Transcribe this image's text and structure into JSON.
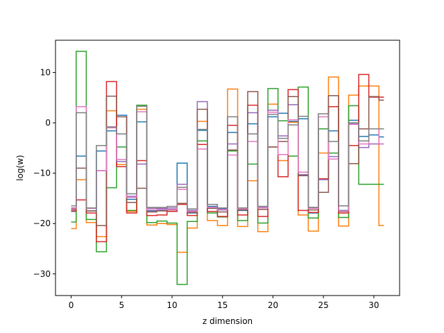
{
  "chart_data": {
    "type": "line",
    "drawstyle": "steps-mid",
    "xlabel": "z dimension",
    "ylabel": "log(w)",
    "xlim": [
      -1.55,
      32.55
    ],
    "ylim": [
      -34.3,
      16.4
    ],
    "xticks": [
      0,
      5,
      10,
      15,
      20,
      25,
      30
    ],
    "yticks": [
      -30,
      -20,
      -10,
      0,
      10
    ],
    "x": [
      0,
      1,
      2,
      3,
      4,
      5,
      6,
      7,
      8,
      9,
      10,
      11,
      12,
      13,
      14,
      15,
      16,
      17,
      18,
      19,
      20,
      21,
      22,
      23,
      24,
      25,
      26,
      27,
      28,
      29,
      30,
      31
    ],
    "series": [
      {
        "color": "#1f77b4",
        "values": [
          -17.6,
          -6.6,
          -17.5,
          -5.6,
          -1.6,
          1.5,
          -15.2,
          0.2,
          -17.5,
          -17.4,
          -17.2,
          -8.0,
          -17.9,
          -1.5,
          -16.6,
          -17.1,
          -1.9,
          -17.4,
          -0.2,
          -16.9,
          1.2,
          1.9,
          0.3,
          0.8,
          -17.9,
          -1.2,
          -1.6,
          -17.4,
          0.5,
          -2.7,
          -2.4,
          -2.8
        ]
      },
      {
        "color": "#ff7f0e",
        "values": [
          -21.0,
          -11.3,
          -19.8,
          -22.6,
          2.4,
          -8.3,
          -17.6,
          2.7,
          -20.3,
          -20.0,
          -20.2,
          -25.7,
          -20.9,
          0.3,
          -19.4,
          -20.4,
          6.7,
          -20.6,
          -11.5,
          -21.6,
          3.7,
          -7.5,
          0.1,
          -18.3,
          -21.5,
          -6.0,
          9.1,
          -20.5,
          5.5,
          7.3,
          7.3,
          -20.4
        ]
      },
      {
        "color": "#2ca02c",
        "values": [
          -19.7,
          14.2,
          -19.2,
          -25.6,
          -12.9,
          -4.8,
          -17.4,
          3.5,
          -19.8,
          -19.5,
          -19.9,
          -32.1,
          -19.6,
          -3.6,
          -17.9,
          -18.7,
          -5.6,
          -19.4,
          -8.2,
          -19.9,
          6.8,
          0.4,
          -6.6,
          7.1,
          -18.9,
          -1.2,
          -6.0,
          -18.8,
          3.4,
          -12.2,
          -12.2,
          -12.2
        ]
      },
      {
        "color": "#d62728",
        "values": [
          -17.5,
          -15.3,
          -17.9,
          -23.6,
          8.2,
          -8.7,
          -17.9,
          -7.5,
          -18.4,
          -18.3,
          -17.6,
          -16.2,
          -18.4,
          -4.3,
          -17.6,
          -18.6,
          -0.5,
          -18.3,
          3.5,
          -18.6,
          -4.8,
          -10.7,
          6.6,
          -17.4,
          -17.8,
          -11.1,
          3.2,
          -17.9,
          -4.5,
          9.6,
          5.1,
          5.1
        ]
      },
      {
        "color": "#9467bd",
        "values": [
          -16.9,
          3.2,
          -16.9,
          -9.5,
          -0.9,
          -7.7,
          -14.6,
          -8.2,
          -17.0,
          -17.0,
          -16.9,
          -12.2,
          -17.4,
          4.2,
          -16.8,
          -17.3,
          -4.2,
          -17.0,
          2.0,
          -16.8,
          2.5,
          -2.6,
          3.6,
          -10.3,
          -16.8,
          -11.3,
          -6.7,
          -16.5,
          -0.2,
          -4.9,
          -4.2,
          -4.2
        ]
      },
      {
        "color": "#8c564b",
        "values": [
          -17.2,
          -9.0,
          -17.5,
          -20.4,
          5.3,
          1.2,
          -15.8,
          -13.0,
          -17.7,
          -17.5,
          -17.3,
          -16.0,
          -17.8,
          2.7,
          -17.0,
          -17.7,
          -5.4,
          -17.3,
          6.2,
          -17.2,
          -4.8,
          -3.7,
          5.2,
          -10.5,
          -17.3,
          -13.8,
          5.4,
          -17.6,
          -8.1,
          -1.2,
          5.2,
          4.5
        ]
      },
      {
        "color": "#e377c2",
        "values": [
          -17.0,
          3.2,
          -17.0,
          -9.5,
          -1.0,
          -7.3,
          -14.8,
          2.2,
          -17.3,
          -17.2,
          -17.2,
          -13.2,
          -17.6,
          -5.2,
          -16.8,
          -17.2,
          -6.4,
          -17.1,
          -3.7,
          -16.9,
          2.1,
          -6.3,
          0.6,
          -9.8,
          -17.0,
          1.2,
          -7.2,
          -17.5,
          -0.3,
          -4.2,
          -1.2,
          -4.2
        ]
      },
      {
        "color": "#7f7f7f",
        "values": [
          -16.5,
          2.0,
          -16.9,
          -4.5,
          -0.8,
          -2.2,
          -14.1,
          3.3,
          -16.8,
          -16.8,
          -16.6,
          -12.8,
          -17.1,
          -1.3,
          -16.2,
          -16.9,
          1.2,
          -16.9,
          -2.2,
          -16.6,
          1.7,
          -3.1,
          -0.4,
          1.3,
          -16.8,
          1.8,
          -3.7,
          -16.5,
          0.0,
          -3.6,
          -1.2,
          -1.2
        ]
      }
    ]
  }
}
